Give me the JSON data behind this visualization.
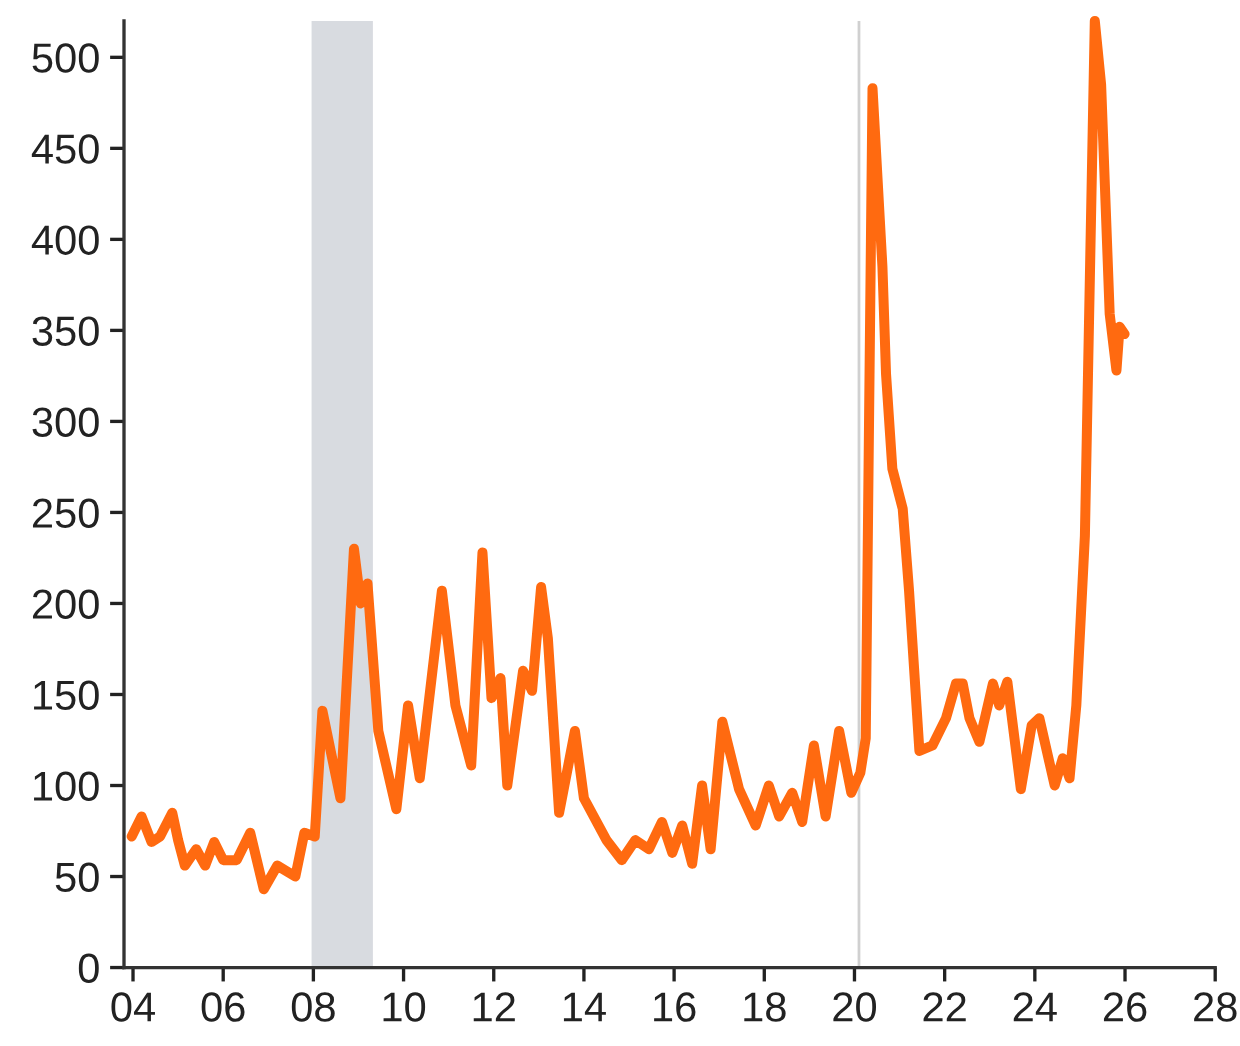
{
  "chart_data": {
    "type": "line",
    "x": [
      2003.97,
      2004.19,
      2004.41,
      2004.6,
      2004.87,
      2005.0,
      2005.15,
      2005.4,
      2005.6,
      2005.8,
      2006.0,
      2006.3,
      2006.6,
      2006.9,
      2007.2,
      2007.6,
      2007.8,
      2008.03,
      2008.2,
      2008.6,
      2008.9,
      2009.05,
      2009.2,
      2009.44,
      2009.84,
      2010.1,
      2010.36,
      2010.85,
      2011.15,
      2011.5,
      2011.75,
      2011.95,
      2012.15,
      2012.3,
      2012.65,
      2012.85,
      2013.05,
      2013.2,
      2013.45,
      2013.8,
      2014.0,
      2014.5,
      2014.84,
      2015.14,
      2015.44,
      2015.73,
      2015.96,
      2016.18,
      2016.4,
      2016.62,
      2016.81,
      2017.07,
      2017.44,
      2017.81,
      2018.1,
      2018.33,
      2018.62,
      2018.84,
      2019.1,
      2019.36,
      2019.66,
      2019.93,
      2020.13,
      2020.25,
      2020.4,
      2020.62,
      2020.7,
      2020.84,
      2021.07,
      2021.21,
      2021.44,
      2021.73,
      2022.03,
      2022.25,
      2022.4,
      2022.55,
      2022.77,
      2023.07,
      2023.21,
      2023.39,
      2023.69,
      2023.93,
      2024.1,
      2024.44,
      2024.62,
      2024.77,
      2024.92,
      2025.11,
      2025.33,
      2025.47,
      2025.66,
      2025.81,
      2025.88,
      2025.99
    ],
    "series": [
      {
        "color": "#ff6a10",
        "values": [
          72,
          83,
          69,
          72,
          85,
          70,
          56,
          65,
          56,
          69,
          59,
          59,
          74,
          43,
          56,
          50,
          74,
          72,
          141,
          93,
          230,
          200,
          211,
          130,
          87,
          144,
          104,
          207,
          144,
          111,
          228,
          148,
          159,
          100,
          163,
          152,
          209,
          181,
          85,
          130,
          93,
          70,
          59,
          70,
          65,
          80,
          63,
          78,
          57,
          100,
          65,
          135,
          98,
          78,
          100,
          83,
          96,
          80,
          122,
          83,
          130,
          96,
          107,
          126,
          483,
          385,
          326,
          274,
          252,
          207,
          119,
          122,
          137,
          156,
          156,
          137,
          124,
          156,
          144,
          157,
          98,
          133,
          137,
          100,
          115,
          104,
          144,
          237,
          520,
          485,
          359,
          328,
          352,
          348
        ]
      }
    ],
    "xlim": [
      2003.8,
      2028
    ],
    "xticks": [
      {
        "value": 2004,
        "label": "04"
      },
      {
        "value": 2006,
        "label": "06"
      },
      {
        "value": 2008,
        "label": "08"
      },
      {
        "value": 2010,
        "label": "10"
      },
      {
        "value": 2012,
        "label": "12"
      },
      {
        "value": 2014,
        "label": "14"
      },
      {
        "value": 2016,
        "label": "16"
      },
      {
        "value": 2018,
        "label": "18"
      },
      {
        "value": 2020,
        "label": "20"
      },
      {
        "value": 2022,
        "label": "22"
      },
      {
        "value": 2024,
        "label": "24"
      },
      {
        "value": 2026,
        "label": "26"
      },
      {
        "value": 2028,
        "label": "28"
      }
    ],
    "ylim": [
      0,
      520
    ],
    "yticks": [
      0,
      50,
      100,
      150,
      200,
      250,
      300,
      350,
      400,
      450,
      500
    ],
    "bands": [
      {
        "axis": "x",
        "from": 2007.96,
        "to": 2009.32,
        "color": "#d8dbe0"
      }
    ],
    "ref_lines": [
      {
        "axis": "x",
        "value": 2020.1,
        "color": "#d0d0d0"
      }
    ],
    "grid": false,
    "legend": false
  }
}
